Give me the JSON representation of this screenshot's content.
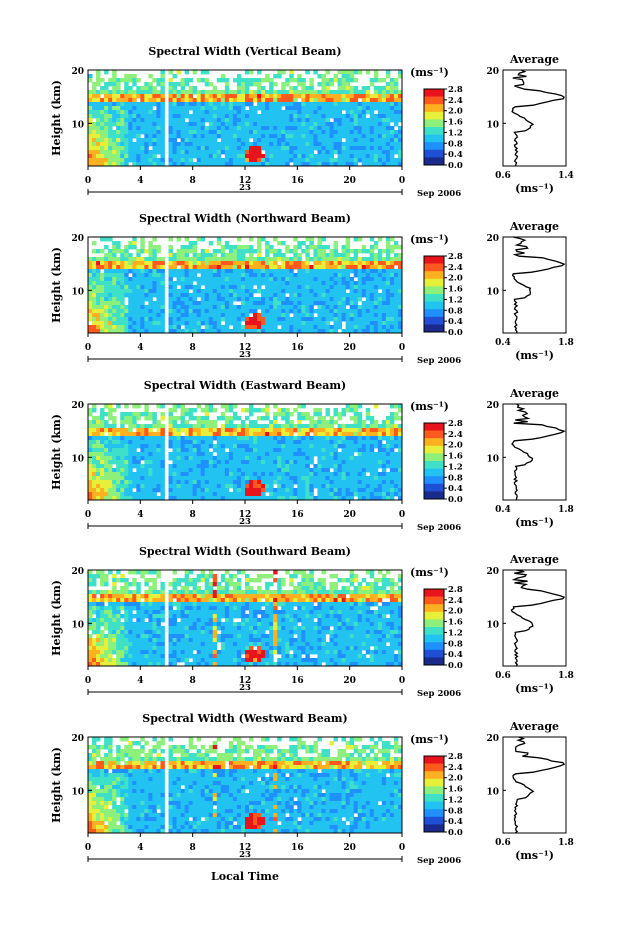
{
  "figure": {
    "xlabel": "Local Time",
    "date_label": "Sep 2006",
    "day_label": "23",
    "avg_xlabel": "(ms⁻¹)",
    "colorbar_unit": "(ms⁻¹)"
  },
  "chart_data": [
    {
      "type": "heatmap",
      "title": "Spectral Width (Vertical Beam)",
      "xlabel": "",
      "ylabel": "Height (km)",
      "x_ticks": [
        "0",
        "4",
        "8",
        "12",
        "16",
        "20",
        "0"
      ],
      "x_range_hours": [
        0,
        24
      ],
      "y_ticks": [
        "20",
        "10"
      ],
      "y_range_km": [
        2,
        20
      ],
      "colorbar": {
        "min": 0.0,
        "max": 2.8,
        "ticks": [
          "2.8",
          "2.4",
          "2.0",
          "1.6",
          "1.2",
          "0.8",
          "0.4",
          "0.0"
        ]
      },
      "colors": [
        "#1a2a8c",
        "#1f4fd6",
        "#1e90ff",
        "#22c3f0",
        "#3fe0c8",
        "#8cf07a",
        "#e6f03a",
        "#ffb020",
        "#ff5a1e",
        "#e8141c"
      ],
      "average": {
        "title": "Average",
        "x_ticks": [
          "0.6",
          "1.4"
        ],
        "xlim": [
          0.6,
          1.4
        ]
      }
    },
    {
      "type": "heatmap",
      "title": "Spectral Width (Northward Beam)",
      "xlabel": "",
      "ylabel": "Height (km)",
      "x_ticks": [
        "0",
        "4",
        "8",
        "12",
        "16",
        "20",
        "0"
      ],
      "x_range_hours": [
        0,
        24
      ],
      "y_ticks": [
        "20",
        "10"
      ],
      "y_range_km": [
        2,
        20
      ],
      "colorbar": {
        "min": 0.0,
        "max": 2.8,
        "ticks": [
          "2.8",
          "2.4",
          "2.0",
          "1.6",
          "1.2",
          "0.8",
          "0.4",
          "0.0"
        ]
      },
      "average": {
        "title": "Average",
        "x_ticks": [
          "0.4",
          "1.8"
        ],
        "xlim": [
          0.4,
          1.8
        ]
      }
    },
    {
      "type": "heatmap",
      "title": "Spectral Width (Eastward Beam)",
      "xlabel": "",
      "ylabel": "Height (km)",
      "x_ticks": [
        "0",
        "4",
        "8",
        "12",
        "16",
        "20",
        "0"
      ],
      "x_range_hours": [
        0,
        24
      ],
      "y_ticks": [
        "20",
        "10"
      ],
      "y_range_km": [
        2,
        20
      ],
      "colorbar": {
        "min": 0.0,
        "max": 2.8,
        "ticks": [
          "2.8",
          "2.4",
          "2.0",
          "1.6",
          "1.2",
          "0.8",
          "0.4",
          "0.0"
        ]
      },
      "average": {
        "title": "Average",
        "x_ticks": [
          "0.4",
          "1.8"
        ],
        "xlim": [
          0.4,
          1.8
        ]
      }
    },
    {
      "type": "heatmap",
      "title": "Spectral Width (Southward Beam)",
      "xlabel": "",
      "ylabel": "Height (km)",
      "x_ticks": [
        "0",
        "4",
        "8",
        "12",
        "16",
        "20",
        "0"
      ],
      "x_range_hours": [
        0,
        24
      ],
      "y_ticks": [
        "20",
        "10"
      ],
      "y_range_km": [
        2,
        20
      ],
      "colorbar": {
        "min": 0.0,
        "max": 2.8,
        "ticks": [
          "2.8",
          "2.4",
          "2.0",
          "1.6",
          "1.2",
          "0.8",
          "0.4",
          "0.0"
        ]
      },
      "average": {
        "title": "Average",
        "x_ticks": [
          "0.6",
          "1.8"
        ],
        "xlim": [
          0.6,
          1.8
        ]
      }
    },
    {
      "type": "heatmap",
      "title": "Spectral Width (Westward Beam)",
      "xlabel": "",
      "ylabel": "Height (km)",
      "x_ticks": [
        "0",
        "4",
        "8",
        "12",
        "16",
        "20",
        "0"
      ],
      "x_range_hours": [
        0,
        24
      ],
      "y_ticks": [
        "20",
        "10"
      ],
      "y_range_km": [
        2,
        20
      ],
      "colorbar": {
        "min": 0.0,
        "max": 2.8,
        "ticks": [
          "2.8",
          "2.4",
          "2.0",
          "1.6",
          "1.2",
          "0.8",
          "0.4",
          "0.0"
        ]
      },
      "average": {
        "title": "Average",
        "x_ticks": [
          "0.6",
          "1.8"
        ],
        "xlim": [
          0.6,
          1.8
        ]
      }
    }
  ]
}
